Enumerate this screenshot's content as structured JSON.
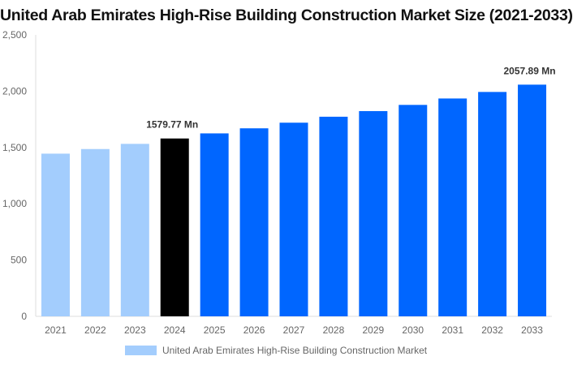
{
  "chart_data": {
    "type": "bar",
    "title": "United Arab Emirates High-Rise Building Construction Market Size (2021-2033)",
    "categories": [
      "2021",
      "2022",
      "2023",
      "2024",
      "2025",
      "2026",
      "2027",
      "2028",
      "2029",
      "2030",
      "2031",
      "2032",
      "2033"
    ],
    "series": [
      {
        "name": "United Arab Emirates High-Rise Building Construction Market",
        "values": [
          1445,
          1486,
          1532,
          1579.77,
          1625,
          1670,
          1720,
          1773,
          1823,
          1878,
          1935,
          1993,
          2057.89
        ]
      }
    ],
    "bar_colors": [
      "#a3cdfd",
      "#a3cdfd",
      "#a3cdfd",
      "#000000",
      "#0066ff",
      "#0066ff",
      "#0066ff",
      "#0066ff",
      "#0066ff",
      "#0066ff",
      "#0066ff",
      "#0066ff",
      "#0066ff"
    ],
    "legend_color": "#a3cdfd",
    "data_labels": [
      {
        "index": 3,
        "text": "1579.77 Mn"
      },
      {
        "index": 12,
        "text": "2057.89 Mn"
      }
    ],
    "yticks": [
      "0",
      "500",
      "1,000",
      "1,500",
      "2,000",
      "2,500"
    ],
    "ytick_values": [
      0,
      500,
      1000,
      1500,
      2000,
      2500
    ],
    "ylim": [
      0,
      2500
    ],
    "xlabel": "",
    "ylabel": "",
    "grid": false,
    "legend_position": "bottom"
  }
}
